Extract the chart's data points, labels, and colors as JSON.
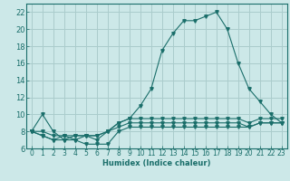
{
  "title": "",
  "xlabel": "Humidex (Indice chaleur)",
  "bg_color": "#cce8e8",
  "grid_color": "#aacccc",
  "line_color": "#1a6e6a",
  "xlim": [
    -0.5,
    23.5
  ],
  "ylim": [
    6,
    23
  ],
  "xticks": [
    0,
    1,
    2,
    3,
    4,
    5,
    6,
    7,
    8,
    9,
    10,
    11,
    12,
    13,
    14,
    15,
    16,
    17,
    18,
    19,
    20,
    21,
    22,
    23
  ],
  "yticks": [
    6,
    8,
    10,
    12,
    14,
    16,
    18,
    20,
    22
  ],
  "series": [
    [
      8.0,
      10.0,
      8.0,
      7.0,
      7.5,
      7.5,
      7.0,
      8.0,
      9.0,
      9.5,
      11.0,
      13.0,
      17.5,
      19.5,
      21.0,
      21.0,
      21.5,
      22.0,
      20.0,
      16.0,
      13.0,
      11.5,
      10.0,
      9.0
    ],
    [
      8.0,
      7.5,
      7.0,
      7.5,
      7.0,
      7.5,
      7.5,
      8.0,
      9.0,
      9.5,
      9.5,
      9.5,
      9.5,
      9.5,
      9.5,
      9.5,
      9.5,
      9.5,
      9.5,
      9.5,
      9.0,
      9.5,
      9.5,
      9.5
    ],
    [
      8.0,
      8.0,
      7.5,
      7.5,
      7.5,
      7.5,
      7.5,
      8.0,
      8.5,
      9.0,
      9.0,
      9.0,
      9.0,
      9.0,
      9.0,
      9.0,
      9.0,
      9.0,
      9.0,
      9.0,
      8.5,
      9.0,
      9.0,
      9.0
    ],
    [
      8.0,
      7.5,
      7.0,
      7.0,
      7.0,
      6.5,
      6.5,
      6.5,
      8.0,
      8.5,
      8.5,
      8.5,
      8.5,
      8.5,
      8.5,
      8.5,
      8.5,
      8.5,
      8.5,
      8.5,
      8.5,
      9.0,
      9.0,
      9.0
    ]
  ]
}
